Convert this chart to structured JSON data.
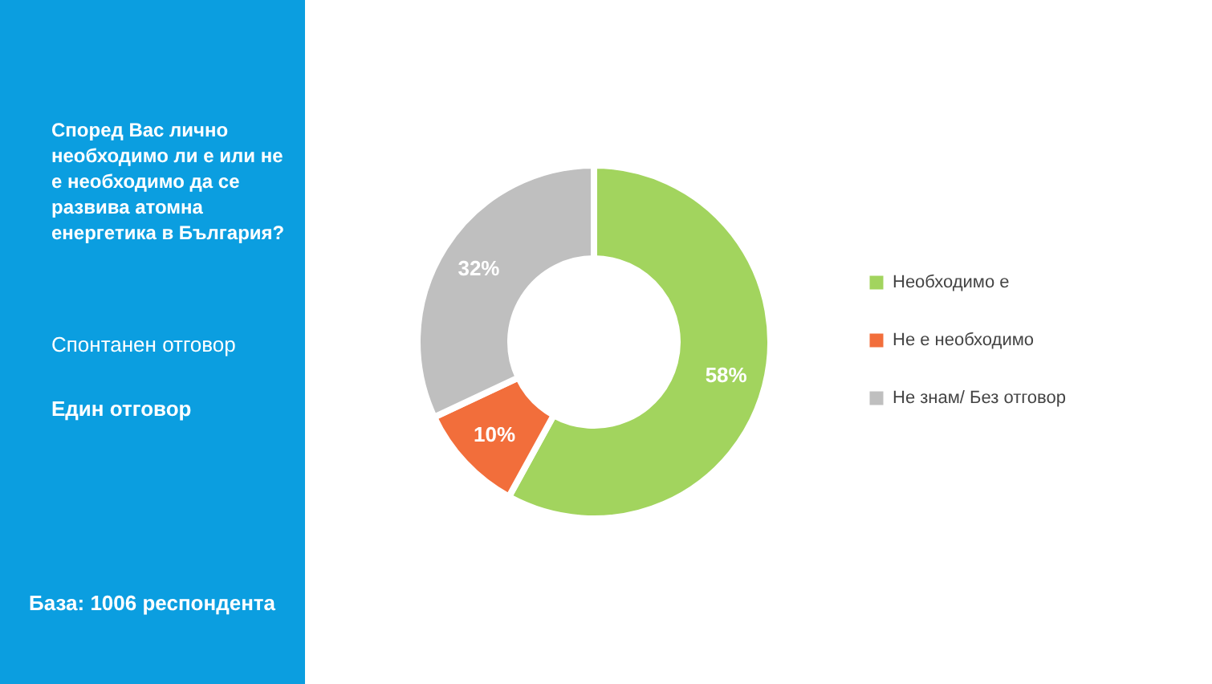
{
  "chart_data": {
    "type": "donut",
    "title": "Според Вас лично необходимо ли е или не е необходимо да се развива атомна енергетика в България?",
    "subtitle": "Спонтанен отговор",
    "annotations": [
      "Един отговор",
      "База: 1006 респондента"
    ],
    "categories": [
      "Необходимо е",
      "Не е необходимо",
      "Не знам/ Без отговор"
    ],
    "values": [
      58,
      10,
      32
    ],
    "colors": [
      "#a2d45e",
      "#f26e3b",
      "#bfbfbf"
    ],
    "value_labels": [
      "58%",
      "10%",
      "32%"
    ],
    "legend": "right"
  }
}
